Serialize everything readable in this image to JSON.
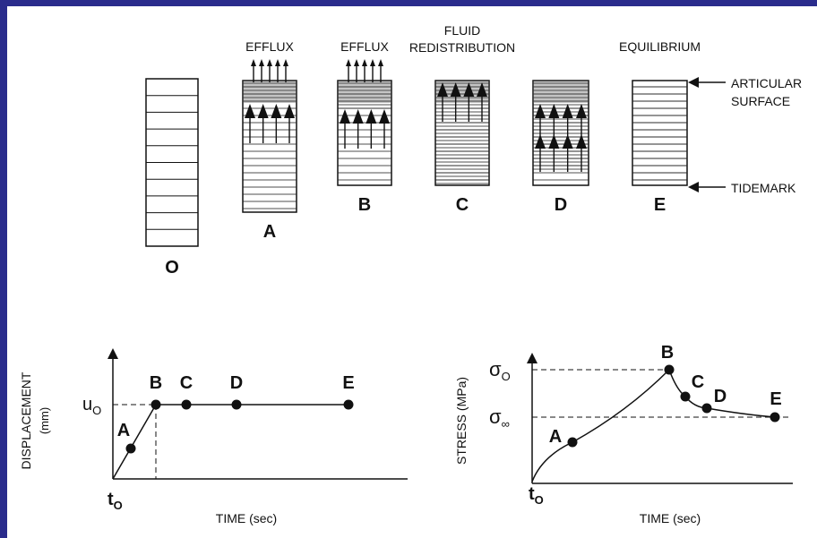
{
  "specimens": [
    {
      "label": "O"
    },
    {
      "label": "A",
      "header": "EFFLUX"
    },
    {
      "label": "B",
      "header": "EFFLUX"
    },
    {
      "label": "C",
      "header_lines": [
        "FLUID",
        "REDISTRIBUTION"
      ]
    },
    {
      "label": "D"
    },
    {
      "label": "E",
      "header": "EQUILIBRIUM"
    }
  ],
  "annotations": {
    "articular_surface": [
      "ARTICULAR",
      "SURFACE"
    ],
    "tidemark": "TIDEMARK"
  },
  "displacement_graph": {
    "y_label": "DISPLACEMENT",
    "y_unit": "(mm)",
    "x_label": "TIME (sec)",
    "y_marker": {
      "symbol": "u",
      "subscript": "O"
    },
    "x_marker": {
      "symbol": "t",
      "subscript": "O"
    },
    "points": [
      "A",
      "B",
      "C",
      "D",
      "E"
    ]
  },
  "stress_graph": {
    "y_label": "STRESS (MPa)",
    "x_label": "TIME (sec)",
    "y_markers": [
      {
        "symbol": "σ",
        "subscript": "O"
      },
      {
        "symbol": "σ",
        "subscript": "∞"
      }
    ],
    "x_marker": {
      "symbol": "t",
      "subscript": "O"
    },
    "points": [
      "A",
      "B",
      "C",
      "D",
      "E"
    ]
  }
}
